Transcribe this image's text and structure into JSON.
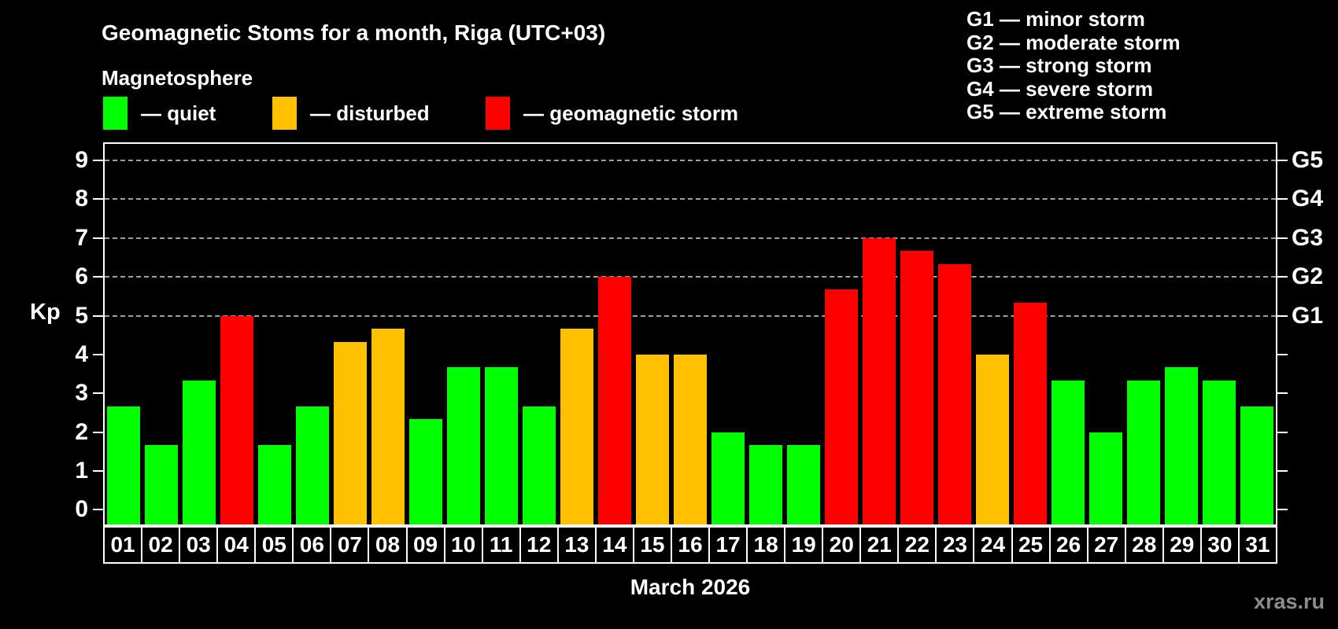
{
  "title": "Geomagnetic Stoms for a month, Riga (UTC+03)",
  "subtitle": "Magnetosphere",
  "legend": {
    "items": [
      {
        "id": "quiet",
        "label": "— quiet",
        "color": "#00ff00"
      },
      {
        "id": "disturbed",
        "label": "— disturbed",
        "color": "#ffc000"
      },
      {
        "id": "storm",
        "label": "— geomagnetic storm",
        "color": "#ff0000"
      }
    ]
  },
  "g_scale_legend": [
    "G1 — minor storm",
    "G2 — moderate storm",
    "G3 — strong storm",
    "G4 — severe storm",
    "G5 — extreme storm"
  ],
  "watermark": "xras.ru",
  "chart_data": {
    "type": "bar",
    "title": "Geomagnetic Stoms for a month, Riga (UTC+03)",
    "xlabel": "March 2026",
    "ylabel": "Kp",
    "categories": [
      "01",
      "02",
      "03",
      "04",
      "05",
      "06",
      "07",
      "08",
      "09",
      "10",
      "11",
      "12",
      "13",
      "14",
      "15",
      "16",
      "17",
      "18",
      "19",
      "20",
      "21",
      "22",
      "23",
      "24",
      "25",
      "26",
      "27",
      "28",
      "29",
      "30",
      "31"
    ],
    "values": [
      2.67,
      1.67,
      3.33,
      5.0,
      1.67,
      2.67,
      4.33,
      4.67,
      2.33,
      3.67,
      3.67,
      2.67,
      4.67,
      6.0,
      4.0,
      4.0,
      2.0,
      1.67,
      1.67,
      5.67,
      7.0,
      6.67,
      6.33,
      4.0,
      5.33,
      3.33,
      2.0,
      3.33,
      3.67,
      3.33,
      2.67
    ],
    "statuses": [
      "quiet",
      "quiet",
      "quiet",
      "storm",
      "quiet",
      "quiet",
      "disturbed",
      "disturbed",
      "quiet",
      "quiet",
      "quiet",
      "quiet",
      "disturbed",
      "storm",
      "disturbed",
      "disturbed",
      "quiet",
      "quiet",
      "quiet",
      "storm",
      "storm",
      "storm",
      "storm",
      "disturbed",
      "storm",
      "quiet",
      "quiet",
      "quiet",
      "quiet",
      "quiet",
      "quiet"
    ],
    "status_colors": {
      "quiet": "#00ff00",
      "disturbed": "#ffc000",
      "storm": "#ff0000"
    },
    "yticks": [
      0,
      1,
      2,
      3,
      4,
      5,
      6,
      7,
      8,
      9
    ],
    "ylim": [
      0,
      9
    ],
    "gridlines_at": [
      5,
      6,
      7,
      8,
      9
    ],
    "grid": "dashed horizontal lines at storm levels only",
    "right_axis": [
      {
        "value": 5,
        "label": "G1"
      },
      {
        "value": 6,
        "label": "G2"
      },
      {
        "value": 7,
        "label": "G3"
      },
      {
        "value": 8,
        "label": "G4"
      },
      {
        "value": 9,
        "label": "G5"
      }
    ],
    "legend_position": "top-left"
  }
}
